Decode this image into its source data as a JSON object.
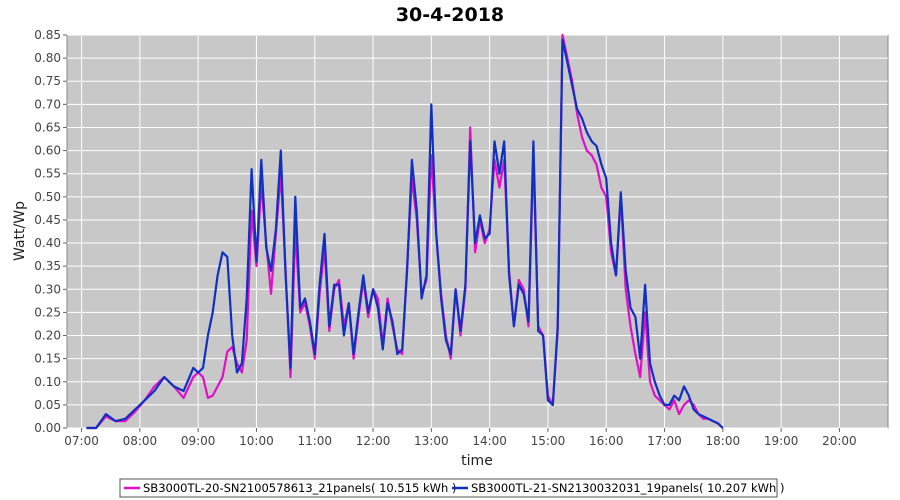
{
  "chart_data": {
    "type": "line",
    "title": "30-4-2018",
    "xlabel": "time",
    "ylabel": "Watt/Wp",
    "xlim": [
      "06:45",
      "20:50"
    ],
    "ylim": [
      0,
      0.85
    ],
    "x_ticks": [
      "07:00",
      "08:00",
      "09:00",
      "10:00",
      "11:00",
      "12:00",
      "13:00",
      "14:00",
      "15:00",
      "16:00",
      "17:00",
      "18:00",
      "19:00",
      "20:00"
    ],
    "y_ticks": [
      "0.00",
      "0.05",
      "0.10",
      "0.15",
      "0.20",
      "0.25",
      "0.30",
      "0.35",
      "0.40",
      "0.45",
      "0.50",
      "0.55",
      "0.60",
      "0.65",
      "0.70",
      "0.75",
      "0.80",
      "0.85"
    ],
    "grid": true,
    "legend_position": "bottom",
    "background": "#c8c8c8",
    "series": [
      {
        "name": "SB3000TL-20-SN2100578613_21panels( 10.515 kWh )",
        "color": "#e010c8",
        "points": [
          [
            "07:05",
            0.0
          ],
          [
            "07:15",
            0.0
          ],
          [
            "07:25",
            0.025
          ],
          [
            "07:35",
            0.015
          ],
          [
            "07:45",
            0.015
          ],
          [
            "07:55",
            0.035
          ],
          [
            "08:05",
            0.06
          ],
          [
            "08:15",
            0.09
          ],
          [
            "08:25",
            0.11
          ],
          [
            "08:35",
            0.09
          ],
          [
            "08:45",
            0.065
          ],
          [
            "08:55",
            0.11
          ],
          [
            "09:00",
            0.12
          ],
          [
            "09:05",
            0.11
          ],
          [
            "09:10",
            0.065
          ],
          [
            "09:15",
            0.07
          ],
          [
            "09:20",
            0.09
          ],
          [
            "09:25",
            0.11
          ],
          [
            "09:30",
            0.165
          ],
          [
            "09:35",
            0.175
          ],
          [
            "09:40",
            0.14
          ],
          [
            "09:45",
            0.12
          ],
          [
            "09:50",
            0.19
          ],
          [
            "09:55",
            0.47
          ],
          [
            "10:00",
            0.35
          ],
          [
            "10:05",
            0.53
          ],
          [
            "10:10",
            0.4
          ],
          [
            "10:15",
            0.29
          ],
          [
            "10:20",
            0.42
          ],
          [
            "10:25",
            0.55
          ],
          [
            "10:30",
            0.34
          ],
          [
            "10:35",
            0.11
          ],
          [
            "10:40",
            0.43
          ],
          [
            "10:45",
            0.25
          ],
          [
            "10:50",
            0.27
          ],
          [
            "10:55",
            0.22
          ],
          [
            "11:00",
            0.15
          ],
          [
            "11:05",
            0.29
          ],
          [
            "11:10",
            0.39
          ],
          [
            "11:15",
            0.21
          ],
          [
            "11:20",
            0.3
          ],
          [
            "11:25",
            0.32
          ],
          [
            "11:30",
            0.22
          ],
          [
            "11:35",
            0.27
          ],
          [
            "11:40",
            0.15
          ],
          [
            "11:45",
            0.24
          ],
          [
            "11:50",
            0.32
          ],
          [
            "11:55",
            0.24
          ],
          [
            "12:00",
            0.3
          ],
          [
            "12:05",
            0.28
          ],
          [
            "12:10",
            0.18
          ],
          [
            "12:15",
            0.28
          ],
          [
            "12:20",
            0.22
          ],
          [
            "12:25",
            0.17
          ],
          [
            "12:30",
            0.16
          ],
          [
            "12:35",
            0.35
          ],
          [
            "12:40",
            0.54
          ],
          [
            "12:45",
            0.45
          ],
          [
            "12:50",
            0.29
          ],
          [
            "12:55",
            0.32
          ],
          [
            "13:00",
            0.59
          ],
          [
            "13:05",
            0.42
          ],
          [
            "13:10",
            0.29
          ],
          [
            "13:15",
            0.2
          ],
          [
            "13:20",
            0.15
          ],
          [
            "13:25",
            0.3
          ],
          [
            "13:30",
            0.2
          ],
          [
            "13:35",
            0.3
          ],
          [
            "13:40",
            0.65
          ],
          [
            "13:45",
            0.38
          ],
          [
            "13:50",
            0.45
          ],
          [
            "13:55",
            0.4
          ],
          [
            "14:00",
            0.43
          ],
          [
            "14:05",
            0.58
          ],
          [
            "14:10",
            0.52
          ],
          [
            "14:15",
            0.58
          ],
          [
            "14:20",
            0.34
          ],
          [
            "14:25",
            0.22
          ],
          [
            "14:30",
            0.32
          ],
          [
            "14:35",
            0.3
          ],
          [
            "14:40",
            0.22
          ],
          [
            "14:45",
            0.59
          ],
          [
            "14:50",
            0.22
          ],
          [
            "14:55",
            0.2
          ],
          [
            "15:00",
            0.07
          ],
          [
            "15:05",
            0.05
          ],
          [
            "15:10",
            0.21
          ],
          [
            "15:15",
            0.85
          ],
          [
            "15:20",
            0.8
          ],
          [
            "15:25",
            0.75
          ],
          [
            "15:30",
            0.68
          ],
          [
            "15:35",
            0.63
          ],
          [
            "15:40",
            0.6
          ],
          [
            "15:45",
            0.59
          ],
          [
            "15:50",
            0.57
          ],
          [
            "15:55",
            0.52
          ],
          [
            "16:00",
            0.5
          ],
          [
            "16:05",
            0.38
          ],
          [
            "16:10",
            0.33
          ],
          [
            "16:15",
            0.5
          ],
          [
            "16:20",
            0.3
          ],
          [
            "16:25",
            0.22
          ],
          [
            "16:30",
            0.16
          ],
          [
            "16:35",
            0.11
          ],
          [
            "16:40",
            0.25
          ],
          [
            "16:45",
            0.1
          ],
          [
            "16:50",
            0.07
          ],
          [
            "16:55",
            0.06
          ],
          [
            "17:00",
            0.05
          ],
          [
            "17:05",
            0.04
          ],
          [
            "17:10",
            0.06
          ],
          [
            "17:15",
            0.03
          ],
          [
            "17:20",
            0.05
          ],
          [
            "17:25",
            0.06
          ],
          [
            "17:30",
            0.05
          ],
          [
            "17:35",
            0.03
          ],
          [
            "17:40",
            0.02
          ],
          [
            "17:45",
            0.02
          ],
          [
            "17:50",
            0.015
          ],
          [
            "17:55",
            0.01
          ],
          [
            "18:00",
            0.0
          ]
        ]
      },
      {
        "name": "SB3000TL-21-SN2130032031_19panels( 10.207 kWh )",
        "color": "#1030c0",
        "points": [
          [
            "07:05",
            0.0
          ],
          [
            "07:15",
            0.0
          ],
          [
            "07:25",
            0.03
          ],
          [
            "07:35",
            0.015
          ],
          [
            "07:45",
            0.02
          ],
          [
            "07:55",
            0.04
          ],
          [
            "08:05",
            0.06
          ],
          [
            "08:15",
            0.08
          ],
          [
            "08:25",
            0.11
          ],
          [
            "08:35",
            0.09
          ],
          [
            "08:45",
            0.08
          ],
          [
            "08:55",
            0.13
          ],
          [
            "09:00",
            0.12
          ],
          [
            "09:05",
            0.13
          ],
          [
            "09:10",
            0.2
          ],
          [
            "09:15",
            0.25
          ],
          [
            "09:20",
            0.33
          ],
          [
            "09:25",
            0.38
          ],
          [
            "09:30",
            0.37
          ],
          [
            "09:35",
            0.2
          ],
          [
            "09:40",
            0.12
          ],
          [
            "09:45",
            0.14
          ],
          [
            "09:50",
            0.28
          ],
          [
            "09:55",
            0.56
          ],
          [
            "10:00",
            0.36
          ],
          [
            "10:05",
            0.58
          ],
          [
            "10:10",
            0.39
          ],
          [
            "10:15",
            0.34
          ],
          [
            "10:20",
            0.43
          ],
          [
            "10:25",
            0.6
          ],
          [
            "10:30",
            0.33
          ],
          [
            "10:35",
            0.13
          ],
          [
            "10:40",
            0.5
          ],
          [
            "10:45",
            0.26
          ],
          [
            "10:50",
            0.28
          ],
          [
            "10:55",
            0.23
          ],
          [
            "11:00",
            0.16
          ],
          [
            "11:05",
            0.31
          ],
          [
            "11:10",
            0.42
          ],
          [
            "11:15",
            0.22
          ],
          [
            "11:20",
            0.31
          ],
          [
            "11:25",
            0.31
          ],
          [
            "11:30",
            0.2
          ],
          [
            "11:35",
            0.27
          ],
          [
            "11:40",
            0.16
          ],
          [
            "11:45",
            0.25
          ],
          [
            "11:50",
            0.33
          ],
          [
            "11:55",
            0.25
          ],
          [
            "12:00",
            0.3
          ],
          [
            "12:05",
            0.26
          ],
          [
            "12:10",
            0.17
          ],
          [
            "12:15",
            0.27
          ],
          [
            "12:20",
            0.23
          ],
          [
            "12:25",
            0.16
          ],
          [
            "12:30",
            0.17
          ],
          [
            "12:35",
            0.34
          ],
          [
            "12:40",
            0.58
          ],
          [
            "12:45",
            0.47
          ],
          [
            "12:50",
            0.28
          ],
          [
            "12:55",
            0.33
          ],
          [
            "13:00",
            0.7
          ],
          [
            "13:05",
            0.42
          ],
          [
            "13:10",
            0.28
          ],
          [
            "13:15",
            0.19
          ],
          [
            "13:20",
            0.16
          ],
          [
            "13:25",
            0.3
          ],
          [
            "13:30",
            0.21
          ],
          [
            "13:35",
            0.31
          ],
          [
            "13:40",
            0.62
          ],
          [
            "13:45",
            0.4
          ],
          [
            "13:50",
            0.46
          ],
          [
            "13:55",
            0.41
          ],
          [
            "14:00",
            0.42
          ],
          [
            "14:05",
            0.62
          ],
          [
            "14:10",
            0.55
          ],
          [
            "14:15",
            0.62
          ],
          [
            "14:20",
            0.33
          ],
          [
            "14:25",
            0.22
          ],
          [
            "14:30",
            0.31
          ],
          [
            "14:35",
            0.29
          ],
          [
            "14:40",
            0.23
          ],
          [
            "14:45",
            0.62
          ],
          [
            "14:50",
            0.21
          ],
          [
            "14:55",
            0.2
          ],
          [
            "15:00",
            0.06
          ],
          [
            "15:05",
            0.05
          ],
          [
            "15:10",
            0.22
          ],
          [
            "15:15",
            0.84
          ],
          [
            "15:20",
            0.79
          ],
          [
            "15:25",
            0.74
          ],
          [
            "15:30",
            0.69
          ],
          [
            "15:35",
            0.67
          ],
          [
            "15:40",
            0.64
          ],
          [
            "15:45",
            0.62
          ],
          [
            "15:50",
            0.61
          ],
          [
            "15:55",
            0.57
          ],
          [
            "16:00",
            0.54
          ],
          [
            "16:05",
            0.4
          ],
          [
            "16:10",
            0.33
          ],
          [
            "16:15",
            0.51
          ],
          [
            "16:20",
            0.34
          ],
          [
            "16:25",
            0.26
          ],
          [
            "16:30",
            0.24
          ],
          [
            "16:35",
            0.15
          ],
          [
            "16:40",
            0.31
          ],
          [
            "16:45",
            0.14
          ],
          [
            "16:50",
            0.1
          ],
          [
            "16:55",
            0.07
          ],
          [
            "17:00",
            0.05
          ],
          [
            "17:05",
            0.05
          ],
          [
            "17:10",
            0.07
          ],
          [
            "17:15",
            0.06
          ],
          [
            "17:20",
            0.09
          ],
          [
            "17:25",
            0.07
          ],
          [
            "17:30",
            0.04
          ],
          [
            "17:35",
            0.03
          ],
          [
            "17:40",
            0.025
          ],
          [
            "17:45",
            0.02
          ],
          [
            "17:50",
            0.015
          ],
          [
            "17:55",
            0.01
          ],
          [
            "18:00",
            0.0
          ]
        ]
      }
    ]
  }
}
